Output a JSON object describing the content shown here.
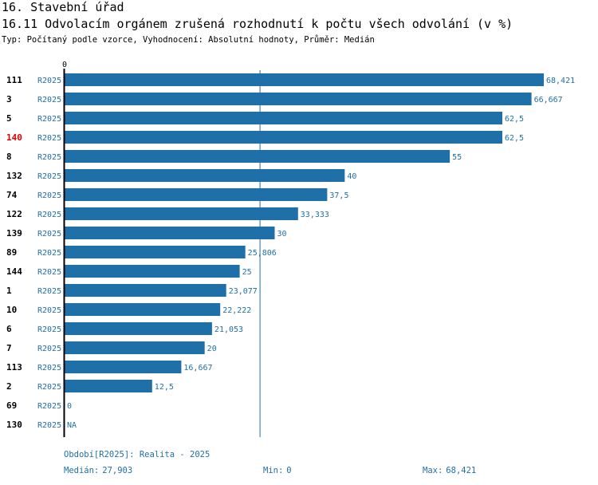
{
  "header": {
    "section": "16. Stavební úřad",
    "title": "16.11 Odvolacím orgánem zrušená rozhodnutí k počtu všech odvolání (v %)",
    "subtitle": "Typ: Počítaný podle vzorce, Vyhodnocení: Absolutní hodnoty, Průměr: Medián"
  },
  "chart_data": {
    "type": "bar",
    "orientation": "horizontal",
    "axis_zero_label": "0",
    "xlim": [
      0,
      68.421
    ],
    "median_value": 27.903,
    "bar_color": "#1f6fa8",
    "highlight_color": "#e00000",
    "series_label": "R2025",
    "rows": [
      {
        "id": "111",
        "series": "R2025",
        "value": 68.421,
        "label": "68,421",
        "highlight": false
      },
      {
        "id": "3",
        "series": "R2025",
        "value": 66.667,
        "label": "66,667",
        "highlight": false
      },
      {
        "id": "5",
        "series": "R2025",
        "value": 62.5,
        "label": "62,5",
        "highlight": false
      },
      {
        "id": "140",
        "series": "R2025",
        "value": 62.5,
        "label": "62,5",
        "highlight": true
      },
      {
        "id": "8",
        "series": "R2025",
        "value": 55,
        "label": "55",
        "highlight": false
      },
      {
        "id": "132",
        "series": "R2025",
        "value": 40,
        "label": "40",
        "highlight": false
      },
      {
        "id": "74",
        "series": "R2025",
        "value": 37.5,
        "label": "37,5",
        "highlight": false
      },
      {
        "id": "122",
        "series": "R2025",
        "value": 33.333,
        "label": "33,333",
        "highlight": false
      },
      {
        "id": "139",
        "series": "R2025",
        "value": 30,
        "label": "30",
        "highlight": false
      },
      {
        "id": "89",
        "series": "R2025",
        "value": 25.806,
        "label": "25,806",
        "highlight": false
      },
      {
        "id": "144",
        "series": "R2025",
        "value": 25,
        "label": "25",
        "highlight": false
      },
      {
        "id": "1",
        "series": "R2025",
        "value": 23.077,
        "label": "23,077",
        "highlight": false
      },
      {
        "id": "10",
        "series": "R2025",
        "value": 22.222,
        "label": "22,222",
        "highlight": false
      },
      {
        "id": "6",
        "series": "R2025",
        "value": 21.053,
        "label": "21,053",
        "highlight": false
      },
      {
        "id": "7",
        "series": "R2025",
        "value": 20,
        "label": "20",
        "highlight": false
      },
      {
        "id": "113",
        "series": "R2025",
        "value": 16.667,
        "label": "16,667",
        "highlight": false
      },
      {
        "id": "2",
        "series": "R2025",
        "value": 12.5,
        "label": "12,5",
        "highlight": false
      },
      {
        "id": "69",
        "series": "R2025",
        "value": 0,
        "label": "0",
        "highlight": false
      },
      {
        "id": "130",
        "series": "R2025",
        "value": null,
        "label": "NA",
        "highlight": false
      }
    ]
  },
  "footer": {
    "period": "Období[R2025]: Realita - 2025",
    "median_label": "Medián:",
    "median_value": "27,903",
    "min_label": "Min:",
    "min_value": "0",
    "max_label": "Max:",
    "max_value": "68,421"
  }
}
